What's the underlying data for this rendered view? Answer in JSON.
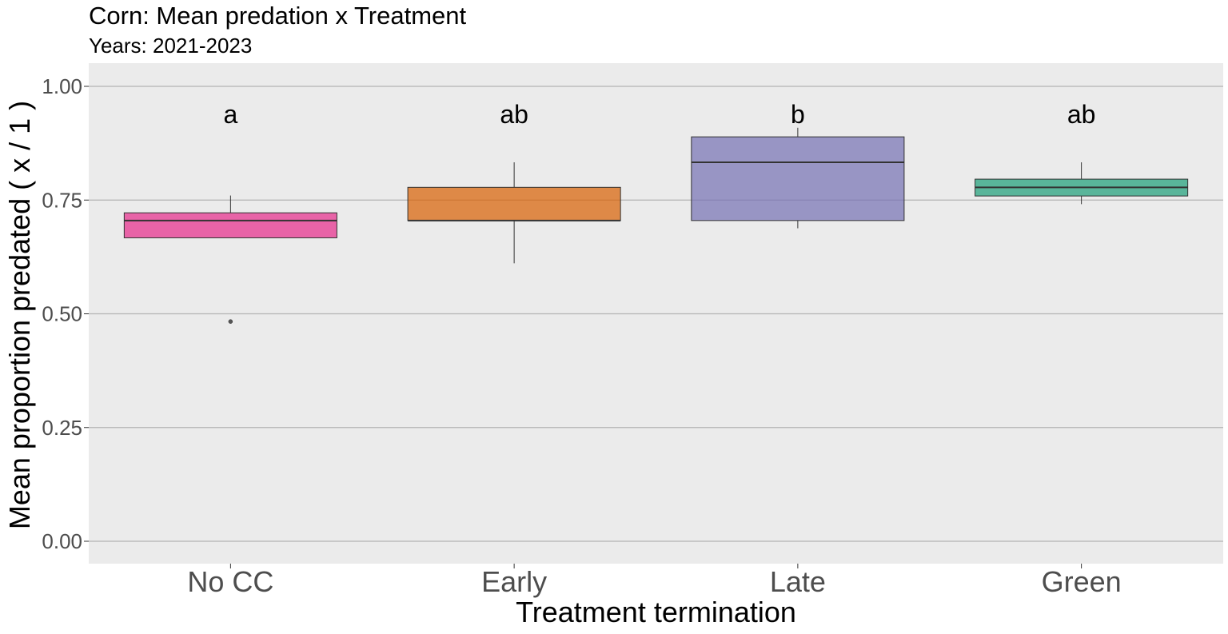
{
  "chart_data": {
    "type": "box",
    "title": "Corn: Mean predation x Treatment",
    "subtitle": "Years: 2021-2023",
    "xlabel": "Treatment termination",
    "ylabel": "Mean proportion predated ( x / 1 )",
    "ylim": [
      -0.05,
      1.05
    ],
    "yticks": [
      0.0,
      0.25,
      0.5,
      0.75,
      1.0
    ],
    "ytick_labels": [
      "0.00",
      "0.25",
      "0.50",
      "0.75",
      "1.00"
    ],
    "grid": "horizontal major lines",
    "legend": "none",
    "categories": [
      "No CC",
      "Early",
      "Late",
      "Green"
    ],
    "boxes": [
      {
        "category": "No CC",
        "whisker_low": 0.667,
        "q1": 0.667,
        "median": 0.705,
        "q3": 0.722,
        "whisker_high": 0.76,
        "outliers": [
          0.483
        ],
        "color": "#E7298A",
        "letter": "a"
      },
      {
        "category": "Early",
        "whisker_low": 0.611,
        "q1": 0.705,
        "median": 0.705,
        "q3": 0.778,
        "whisker_high": 0.833,
        "outliers": [],
        "color": "#D95F02",
        "letter": "ab"
      },
      {
        "category": "Late",
        "whisker_low": 0.688,
        "q1": 0.705,
        "median": 0.833,
        "q3": 0.889,
        "whisker_high": 0.909,
        "outliers": [],
        "color": "#7570B3",
        "letter": "b"
      },
      {
        "category": "Green",
        "whisker_low": 0.741,
        "q1": 0.759,
        "median": 0.778,
        "q3": 0.796,
        "whisker_high": 0.833,
        "outliers": [],
        "color": "#1B9E77",
        "letter": "ab"
      }
    ],
    "letter_y": 0.94,
    "colors": {
      "panel_bg": "#EBEBEB",
      "grid": "#B3B3B3",
      "box_alpha": 0.7
    }
  }
}
